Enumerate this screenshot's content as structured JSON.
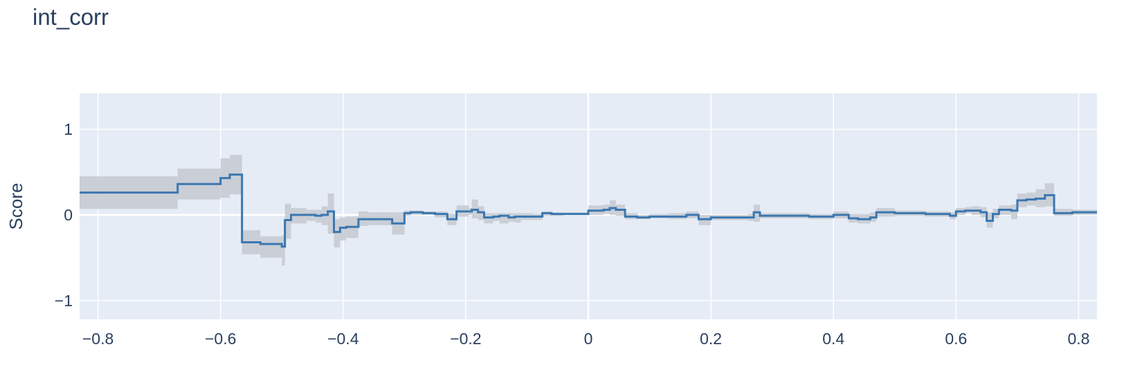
{
  "chart_data": {
    "type": "line",
    "title": "int_corr",
    "xlabel": "",
    "ylabel": "Score",
    "xlim": [
      -0.83,
      0.83
    ],
    "ylim": [
      -1.22,
      1.42
    ],
    "x_ticks": [
      -0.8,
      -0.6,
      -0.4,
      -0.2,
      0,
      0.2,
      0.4,
      0.6,
      0.8
    ],
    "x_tick_labels": [
      "−0.8",
      "−0.6",
      "−0.4",
      "−0.2",
      "0",
      "0.2",
      "0.4",
      "0.6",
      "0.8"
    ],
    "y_ticks": [
      -1,
      0,
      1
    ],
    "y_tick_labels": [
      "−1",
      "0",
      "1"
    ],
    "grid": true,
    "line_shape": "step",
    "colors": {
      "line": "#3a77b0",
      "band": "#c6c9d0",
      "plot_bg": "#e5ecf6",
      "grid": "#ffffff",
      "text": "#2a3f5f"
    },
    "series": [
      {
        "x": [
          -0.83,
          -0.67,
          -0.6,
          -0.585,
          -0.565,
          -0.535,
          -0.5,
          -0.495,
          -0.485,
          -0.46,
          -0.445,
          -0.435,
          -0.425,
          -0.415,
          -0.405,
          -0.395,
          -0.375,
          -0.36,
          -0.32,
          -0.3,
          -0.29,
          -0.27,
          -0.25,
          -0.23,
          -0.215,
          -0.195,
          -0.19,
          -0.18,
          -0.17,
          -0.155,
          -0.145,
          -0.13,
          -0.12,
          -0.11,
          -0.09,
          -0.075,
          -0.06,
          -0.04,
          0,
          0.025,
          0.035,
          0.045,
          0.06,
          0.08,
          0.1,
          0.13,
          0.16,
          0.17,
          0.18,
          0.2,
          0.22,
          0.26,
          0.27,
          0.28,
          0.34,
          0.36,
          0.4,
          0.425,
          0.44,
          0.46,
          0.47,
          0.5,
          0.55,
          0.59,
          0.6,
          0.615,
          0.625,
          0.64,
          0.65,
          0.66,
          0.67,
          0.69,
          0.7,
          0.715,
          0.73,
          0.745,
          0.76,
          0.79,
          0.81
        ],
        "y": [
          0.26,
          0.36,
          0.43,
          0.47,
          -0.32,
          -0.34,
          -0.37,
          -0.06,
          0.0,
          0.0,
          -0.01,
          0.0,
          0.04,
          -0.2,
          -0.15,
          -0.14,
          -0.05,
          -0.05,
          -0.1,
          0.02,
          0.03,
          0.02,
          0.01,
          -0.05,
          0.04,
          0.04,
          0.06,
          0.03,
          -0.03,
          -0.02,
          -0.01,
          -0.03,
          -0.02,
          -0.02,
          -0.02,
          0.02,
          0.01,
          0.01,
          0.05,
          0.06,
          0.08,
          0.06,
          -0.02,
          -0.03,
          -0.02,
          -0.02,
          0.0,
          0.0,
          -0.05,
          -0.03,
          -0.03,
          -0.03,
          0.03,
          -0.01,
          -0.01,
          -0.02,
          0.0,
          -0.04,
          -0.05,
          -0.03,
          0.03,
          0.02,
          0.01,
          -0.01,
          0.04,
          0.05,
          0.05,
          0.03,
          -0.07,
          0.01,
          0.06,
          0.05,
          0.17,
          0.18,
          0.19,
          0.23,
          0.02,
          0.03,
          0.03
        ],
        "upper": [
          0.45,
          0.54,
          0.66,
          0.7,
          -0.18,
          -0.25,
          -0.24,
          0.13,
          0.08,
          0.06,
          0.06,
          0.1,
          0.25,
          -0.05,
          -0.03,
          -0.02,
          0.04,
          0.03,
          0.03,
          0.05,
          0.05,
          0.04,
          0.04,
          0.01,
          0.11,
          0.08,
          0.18,
          0.1,
          0.02,
          0.02,
          0.02,
          0.02,
          0.02,
          0.02,
          0.01,
          0.04,
          0.03,
          0.03,
          0.11,
          0.12,
          0.17,
          0.12,
          0.02,
          0.0,
          0.01,
          0.02,
          0.04,
          0.04,
          0.0,
          0.0,
          0.0,
          0.01,
          0.12,
          0.02,
          0.02,
          0.01,
          0.04,
          0.01,
          0.01,
          0.03,
          0.08,
          0.05,
          0.04,
          0.03,
          0.08,
          0.09,
          0.1,
          0.09,
          0.03,
          0.07,
          0.11,
          0.12,
          0.25,
          0.26,
          0.3,
          0.37,
          0.07,
          0.06,
          0.06
        ],
        "lower": [
          0.07,
          0.18,
          0.2,
          0.24,
          -0.46,
          -0.5,
          -0.59,
          -0.28,
          -0.1,
          -0.07,
          -0.09,
          -0.12,
          -0.22,
          -0.38,
          -0.3,
          -0.27,
          -0.13,
          -0.12,
          -0.23,
          -0.01,
          0.0,
          0.0,
          -0.03,
          -0.12,
          -0.02,
          0.0,
          -0.04,
          -0.06,
          -0.1,
          -0.07,
          -0.1,
          -0.08,
          -0.09,
          -0.06,
          -0.06,
          -0.01,
          -0.01,
          0.0,
          0.0,
          0.01,
          0.0,
          -0.01,
          -0.05,
          -0.05,
          -0.04,
          -0.05,
          -0.04,
          -0.04,
          -0.12,
          -0.06,
          -0.06,
          -0.07,
          -0.08,
          -0.04,
          -0.04,
          -0.05,
          -0.04,
          -0.09,
          -0.1,
          -0.08,
          -0.02,
          -0.01,
          -0.02,
          -0.05,
          0.0,
          0.02,
          0.0,
          -0.03,
          -0.15,
          -0.04,
          0.0,
          -0.05,
          0.09,
          0.11,
          0.09,
          0.1,
          -0.01,
          0.0,
          0.0
        ]
      }
    ]
  }
}
